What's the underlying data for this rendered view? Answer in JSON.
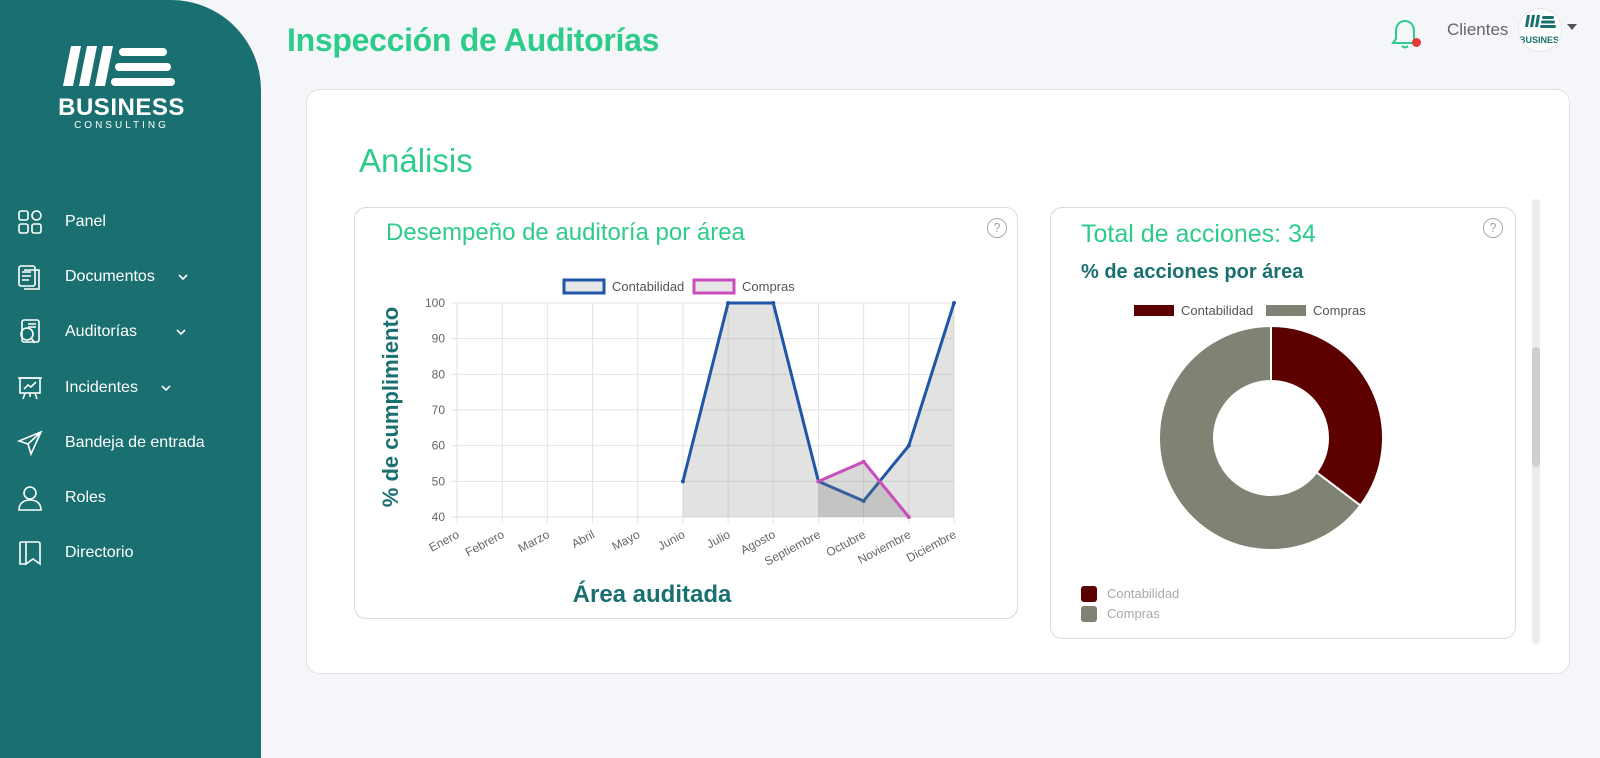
{
  "brand": {
    "name": "BUSINESS",
    "tagline": "CONSULTING"
  },
  "sidebar": {
    "items": [
      {
        "label": "Panel",
        "icon": "grid-icon",
        "has_submenu": false
      },
      {
        "label": "Documentos",
        "icon": "documents-icon",
        "has_submenu": true
      },
      {
        "label": "Auditorías",
        "icon": "audit-search-icon",
        "has_submenu": true
      },
      {
        "label": "Incidentes",
        "icon": "presentation-board-icon",
        "has_submenu": true
      },
      {
        "label": "Bandeja de entrada",
        "icon": "send-icon",
        "has_submenu": false
      },
      {
        "label": "Roles",
        "icon": "user-icon",
        "has_submenu": false
      },
      {
        "label": "Directorio",
        "icon": "bookmark-book-icon",
        "has_submenu": false
      }
    ]
  },
  "header": {
    "title": "Inspección de Auditorías",
    "clients_label": "Clientes",
    "client_avatar_text": "BUSINESS",
    "notification_icon": "bell-icon",
    "has_notification": true
  },
  "main": {
    "section_title": "Análisis"
  },
  "left_card": {
    "title": "Desempeño de auditoría por área",
    "help": "?"
  },
  "right_card": {
    "title": "Total de acciones: 34",
    "subtitle": "% de acciones por área",
    "help": "?",
    "bottom_legend": [
      "Contabilidad",
      "Compras"
    ]
  },
  "colors": {
    "brand_teal": "#1a7070",
    "accent_green": "#2ecc8a",
    "contabilidad_line": "#1f56a8",
    "compras_line": "#c94dbb",
    "contabilidad_slice": "#5c0000",
    "compras_slice": "#808274"
  },
  "chart_data": [
    {
      "type": "line",
      "title": "Desempeño de auditoría por área",
      "xlabel": "Área auditada",
      "ylabel": "% de cumplimiento",
      "categories": [
        "Enero",
        "Febrero",
        "Marzo",
        "Abril",
        "Mayo",
        "Junio",
        "Julio",
        "Agosto",
        "Septiembre",
        "Octubre",
        "Noviembre",
        "Diciembre"
      ],
      "series": [
        {
          "name": "Contabilidad",
          "values": [
            null,
            null,
            null,
            null,
            null,
            50,
            100,
            100,
            50,
            44.5,
            60,
            100
          ],
          "fill": true
        },
        {
          "name": "Compras",
          "values": [
            null,
            null,
            null,
            null,
            null,
            null,
            null,
            null,
            50,
            55.5,
            40,
            null
          ],
          "fill": true
        }
      ],
      "ylim": [
        40,
        100
      ],
      "yticks": [
        40,
        50,
        60,
        70,
        80,
        90,
        100
      ],
      "grid": true,
      "legend": "top"
    },
    {
      "type": "pie",
      "variant": "doughnut",
      "title": "% de acciones por área",
      "labels": [
        "Contabilidad",
        "Compras"
      ],
      "values": [
        12,
        22
      ],
      "legend": "top"
    }
  ]
}
